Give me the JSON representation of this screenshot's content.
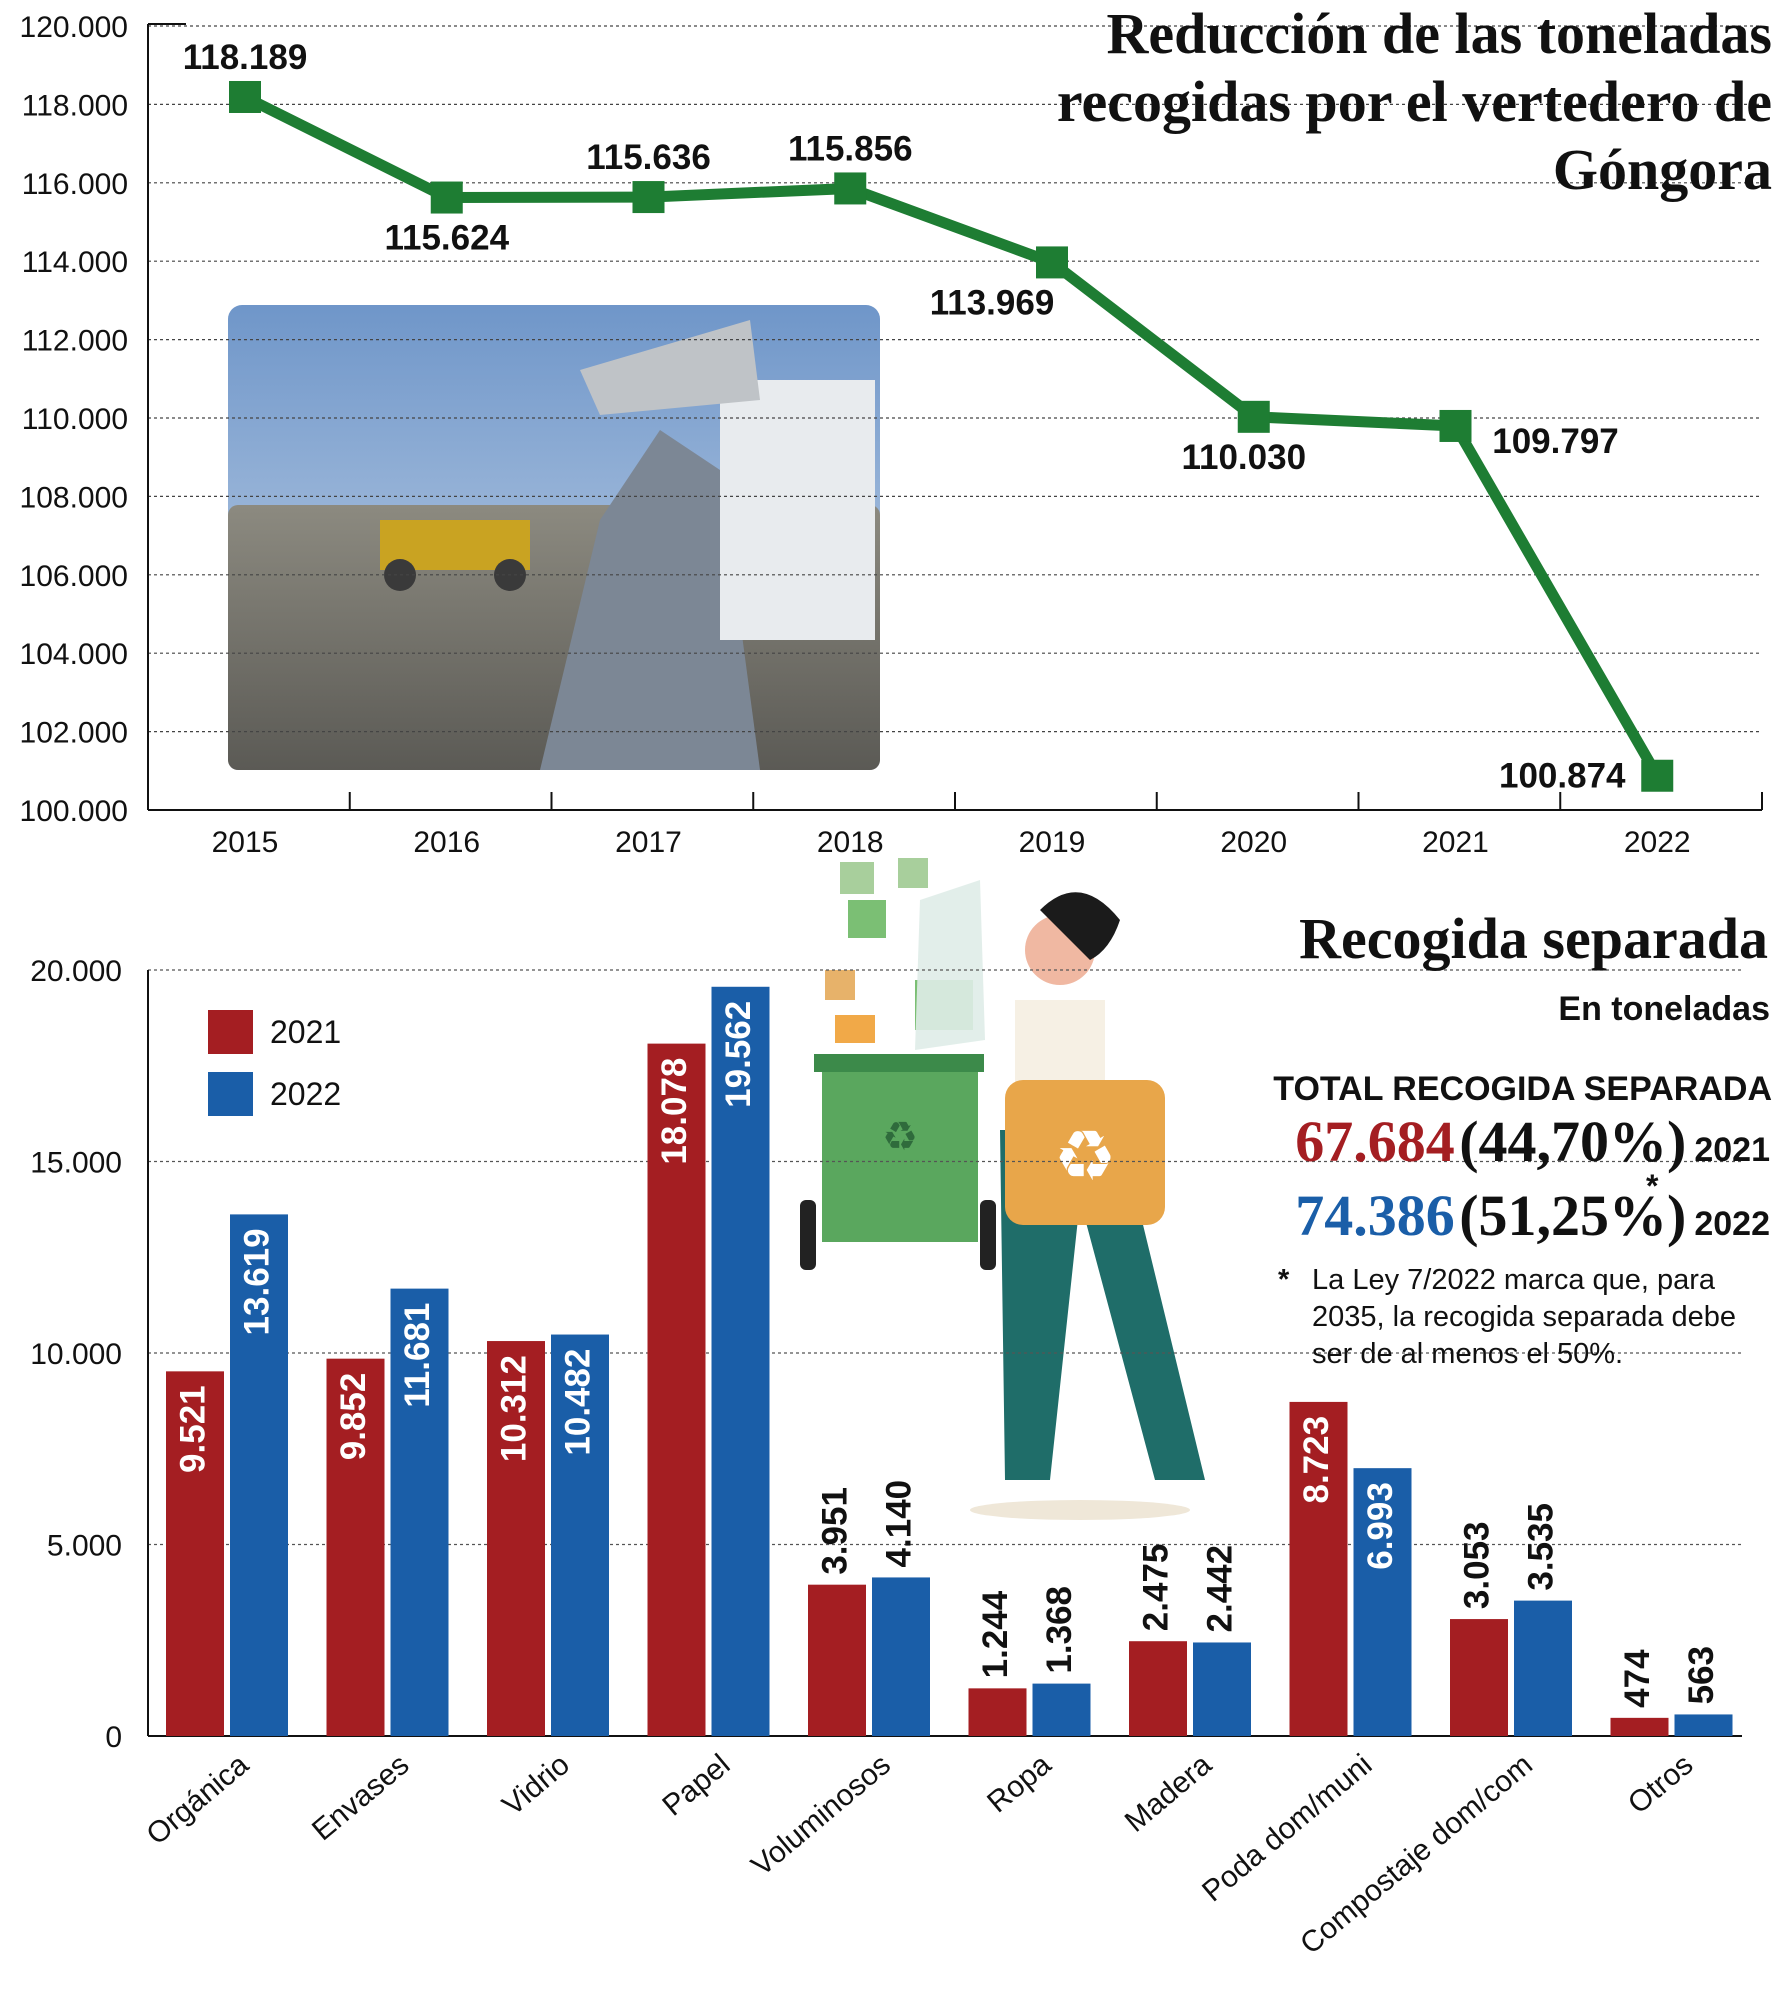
{
  "charts": {
    "line": {
      "title": "Reducción de las toneladas recogidas por el vertedero de Góngora",
      "color": "#1e7d33"
    },
    "bar": {
      "title": "Recogida separada",
      "subtitle": "En toneladas",
      "colors": {
        "2021": "#a41e22",
        "2022": "#1a5ea8"
      }
    }
  },
  "totals": {
    "label": "TOTAL RECOGIDA SEPARADA",
    "rows": [
      {
        "value": "67.684",
        "percent": "(44,70%)",
        "year": "2021",
        "color": "#a41e22"
      },
      {
        "value": "74.386",
        "percent": "(51,25%)",
        "year": "2022",
        "color": "#1a5ea8"
      }
    ],
    "asterisk": "*",
    "note": "La Ley 7/2022 marca que, para 2035, la recogida separada debe ser de al menos el 50%."
  },
  "chart_data": [
    {
      "type": "line",
      "title": "Reducción de las toneladas recogidas por el vertedero de Góngora",
      "x": [
        "2015",
        "2016",
        "2017",
        "2018",
        "2019",
        "2020",
        "2021",
        "2022"
      ],
      "values": [
        118189,
        115624,
        115636,
        115856,
        113969,
        110030,
        109797,
        100874
      ],
      "value_labels": [
        "118.189",
        "115.624",
        "115.636",
        "115.856",
        "113.969",
        "110.030",
        "109.797",
        "100.874"
      ],
      "ylim": [
        100000,
        120000
      ],
      "yticks": [
        100000,
        102000,
        104000,
        106000,
        108000,
        110000,
        112000,
        114000,
        116000,
        118000,
        120000
      ],
      "ytick_labels": [
        "100.000",
        "102.000",
        "104.000",
        "106.000",
        "108.000",
        "110.000",
        "112.000",
        "114.000",
        "116.000",
        "118.000",
        "120.000"
      ],
      "grid": true,
      "xlabel": "",
      "ylabel": ""
    },
    {
      "type": "bar",
      "title": "Recogida separada",
      "subtitle": "En toneladas",
      "categories": [
        "Orgánica",
        "Envases",
        "Vidrio",
        "Papel",
        "Voluminosos",
        "Ropa",
        "Madera",
        "Poda dom/muni",
        "Compostaje dom/com",
        "Otros"
      ],
      "series": [
        {
          "name": "2021",
          "values": [
            9521,
            9852,
            10312,
            18078,
            3951,
            1244,
            2475,
            8723,
            3053,
            474
          ],
          "labels": [
            "9.521",
            "9.852",
            "10.312",
            "18.078",
            "3.951",
            "1.244",
            "2.475",
            "8.723",
            "3.053",
            "474"
          ]
        },
        {
          "name": "2022",
          "values": [
            13619,
            11681,
            10482,
            19562,
            4140,
            1368,
            2442,
            6993,
            3535,
            563
          ],
          "labels": [
            "13.619",
            "11.681",
            "10.482",
            "19.562",
            "4.140",
            "1.368",
            "2.442",
            "6.993",
            "3.535",
            "563"
          ]
        }
      ],
      "ylim": [
        0,
        20000
      ],
      "yticks": [
        0,
        5000,
        10000,
        15000,
        20000
      ],
      "ytick_labels": [
        "0",
        "5.000",
        "10.000",
        "15.000",
        "20.000"
      ],
      "legend": "top-left",
      "grid": true,
      "xlabel": "",
      "ylabel": ""
    }
  ]
}
